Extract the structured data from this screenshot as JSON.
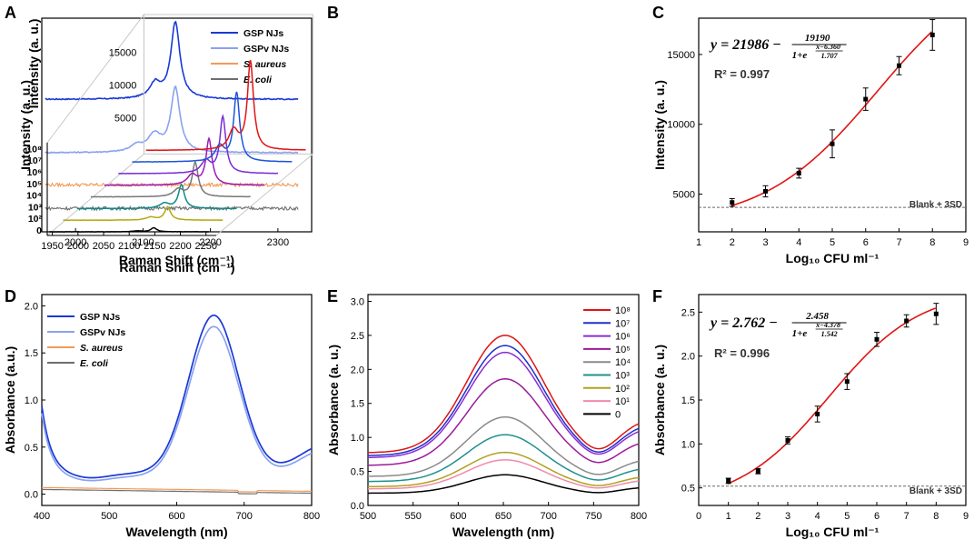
{
  "chart_data": [
    {
      "panel": "A",
      "type": "line",
      "xlabel": "Raman Shift (cm⁻¹)",
      "ylabel": "Intensity (a. u.)",
      "xlim": [
        1950,
        2350
      ],
      "xticks": [
        2000,
        2100,
        2200,
        2300
      ],
      "yticks_shown": false,
      "legend": [
        {
          "name": "GSP NJs",
          "color": "#1a39d6",
          "italic": false
        },
        {
          "name": "GSPv NJs",
          "color": "#8aa2f0",
          "italic": false
        },
        {
          "name": "S. aureus",
          "color": "#f29a57",
          "italic": true
        },
        {
          "name": "E. coli",
          "color": "#6e6e6e",
          "italic": true
        }
      ],
      "series": [
        {
          "name": "GSP NJs",
          "baseline": 0.62,
          "peaks": [
            {
              "x": 2148,
              "h": 0.36,
              "w": 8
            },
            {
              "x": 2118,
              "h": 0.07,
              "w": 10
            }
          ]
        },
        {
          "name": "GSPv NJs",
          "baseline": 0.37,
          "peaks": [
            {
              "x": 2148,
              "h": 0.3,
              "w": 8
            },
            {
              "x": 2117,
              "h": 0.08,
              "w": 12
            },
            {
              "x": 2090,
              "h": 0.03,
              "w": 10
            }
          ]
        },
        {
          "name": "S. aureus",
          "baseline": 0.22,
          "peaks": []
        },
        {
          "name": "E. coli",
          "baseline": 0.11,
          "peaks": []
        }
      ]
    },
    {
      "panel": "B",
      "type": "line",
      "xlabel": "Raman Shift (cm⁻¹)",
      "ylabel": "Intensity (a. u.)",
      "xlim": [
        1940,
        2270
      ],
      "xticks": [
        1950,
        2000,
        2050,
        2100,
        2150,
        2200,
        2250
      ],
      "yticks": [
        5000,
        10000,
        15000
      ],
      "series": [
        {
          "label": "0",
          "color": "#000000",
          "peak": 600
        },
        {
          "label": "10²",
          "color": "#b5a812",
          "peak": 2000
        },
        {
          "label": "10³",
          "color": "#0e8a8a",
          "peak": 3600
        },
        {
          "label": "10⁴",
          "color": "#777777",
          "peak": 5200
        },
        {
          "label": "10⁵",
          "color": "#9a1ab8",
          "peak": 7000
        },
        {
          "label": "10⁶",
          "color": "#7a2bd6",
          "peak": 8600
        },
        {
          "label": "10⁷",
          "color": "#1d54d6",
          "peak": 10500
        },
        {
          "label": "10⁸",
          "color": "#e01414",
          "peak": 13500
        }
      ]
    },
    {
      "panel": "C",
      "type": "scatter",
      "xlabel": "Log₁₀ CFU ml⁻¹",
      "ylabel": "Intensity (a. u.)",
      "xlim": [
        1,
        9
      ],
      "ylim": [
        2300,
        17600
      ],
      "xticks": [
        1,
        2,
        3,
        4,
        5,
        6,
        7,
        8,
        9
      ],
      "yticks": [
        5000,
        10000,
        15000
      ],
      "x": [
        2,
        3,
        4,
        5,
        6,
        7,
        8
      ],
      "y": [
        4400,
        5200,
        6500,
        8600,
        11800,
        14200,
        16400
      ],
      "err": [
        280,
        400,
        350,
        1000,
        800,
        650,
        1100
      ],
      "fit": {
        "A": 21986,
        "B": 19190,
        "x0": 6.36,
        "dx": 1.707
      },
      "equation": {
        "lhs": "y = 21986 −",
        "num": "19190",
        "den_prefix": "1+e",
        "exp_num": "x−6.360",
        "exp_den": "1.707"
      },
      "r2_label": "R",
      "r2_value": "² = 0.997",
      "blank_label": "Blank + 3SD",
      "blank_value": 4050
    },
    {
      "panel": "D",
      "type": "line",
      "xlabel": "Wavelength (nm)",
      "ylabel": "Absorbance (a.u.)",
      "xlim": [
        400,
        800
      ],
      "ylim": [
        -0.12,
        2.12
      ],
      "xticks": [
        400,
        500,
        600,
        700,
        800
      ],
      "yticks": [
        0.0,
        0.5,
        1.0,
        1.5,
        2.0
      ],
      "legend": [
        {
          "name": "GSP NJs",
          "color": "#1a39d6",
          "italic": false
        },
        {
          "name": "GSPv NJs",
          "color": "#8aa2f0",
          "italic": false
        },
        {
          "name": "S. aureus",
          "color": "#f29a57",
          "italic": true
        },
        {
          "name": "E. coli",
          "color": "#6e6e6e",
          "italic": true
        }
      ],
      "series": [
        {
          "name": "GSP NJs",
          "peak_nm": 655,
          "peak": 1.9,
          "base": 0.22
        },
        {
          "name": "GSPv NJs",
          "peak_nm": 655,
          "peak": 1.78,
          "base": 0.2
        },
        {
          "name": "S. aureus",
          "value": 0.07
        },
        {
          "name": "E. coli",
          "value": 0.05
        }
      ]
    },
    {
      "panel": "E",
      "type": "line",
      "xlabel": "Wavelength (nm)",
      "ylabel": "Absorbance (a. u.)",
      "xlim": [
        500,
        800
      ],
      "ylim": [
        0.0,
        3.1
      ],
      "xticks": [
        500,
        550,
        600,
        650,
        700,
        750,
        800
      ],
      "yticks": [
        0.0,
        0.5,
        1.0,
        1.5,
        2.0,
        2.5,
        3.0
      ],
      "series": [
        {
          "label": "10⁸",
          "color": "#e01414",
          "peak": 2.5
        },
        {
          "label": "10⁷",
          "color": "#1d32c8",
          "peak": 2.35
        },
        {
          "label": "10⁶",
          "color": "#8a2bd6",
          "peak": 2.25
        },
        {
          "label": "10⁵",
          "color": "#9a1a9a",
          "peak": 1.86
        },
        {
          "label": "10⁴",
          "color": "#8a8a8a",
          "peak": 1.3
        },
        {
          "label": "10³",
          "color": "#1f8f8f",
          "peak": 1.04
        },
        {
          "label": "10²",
          "color": "#b0a020",
          "peak": 0.78
        },
        {
          "label": "10¹",
          "color": "#f08aa8",
          "peak": 0.67
        },
        {
          "label": "0",
          "color": "#000000",
          "peak": 0.45
        }
      ]
    },
    {
      "panel": "F",
      "type": "scatter",
      "xlabel": "Log₁₀ CFU ml⁻¹",
      "ylabel": "Absorbance (a. u.)",
      "xlim": [
        0,
        9
      ],
      "ylim": [
        0.3,
        2.7
      ],
      "xticks": [
        0,
        1,
        2,
        3,
        4,
        5,
        6,
        7,
        8,
        9
      ],
      "yticks": [
        0.5,
        1.0,
        1.5,
        2.0,
        2.5
      ],
      "x": [
        1,
        2,
        3,
        4,
        5,
        6,
        7,
        8
      ],
      "y": [
        0.58,
        0.69,
        1.04,
        1.34,
        1.71,
        2.19,
        2.4,
        2.48
      ],
      "err": [
        0.03,
        0.03,
        0.04,
        0.09,
        0.09,
        0.08,
        0.07,
        0.12
      ],
      "fit": {
        "A": 2.762,
        "B": 2.458,
        "x0": 4.378,
        "dx": 1.542
      },
      "equation": {
        "lhs": "y = 2.762 −",
        "num": "2.458",
        "den_prefix": "1+e",
        "exp_num": "x−4.378",
        "exp_den": "1.542"
      },
      "r2_label": "R",
      "r2_value": "² = 0.996",
      "blank_label": "Blank + 3SD",
      "blank_value": 0.52
    }
  ]
}
